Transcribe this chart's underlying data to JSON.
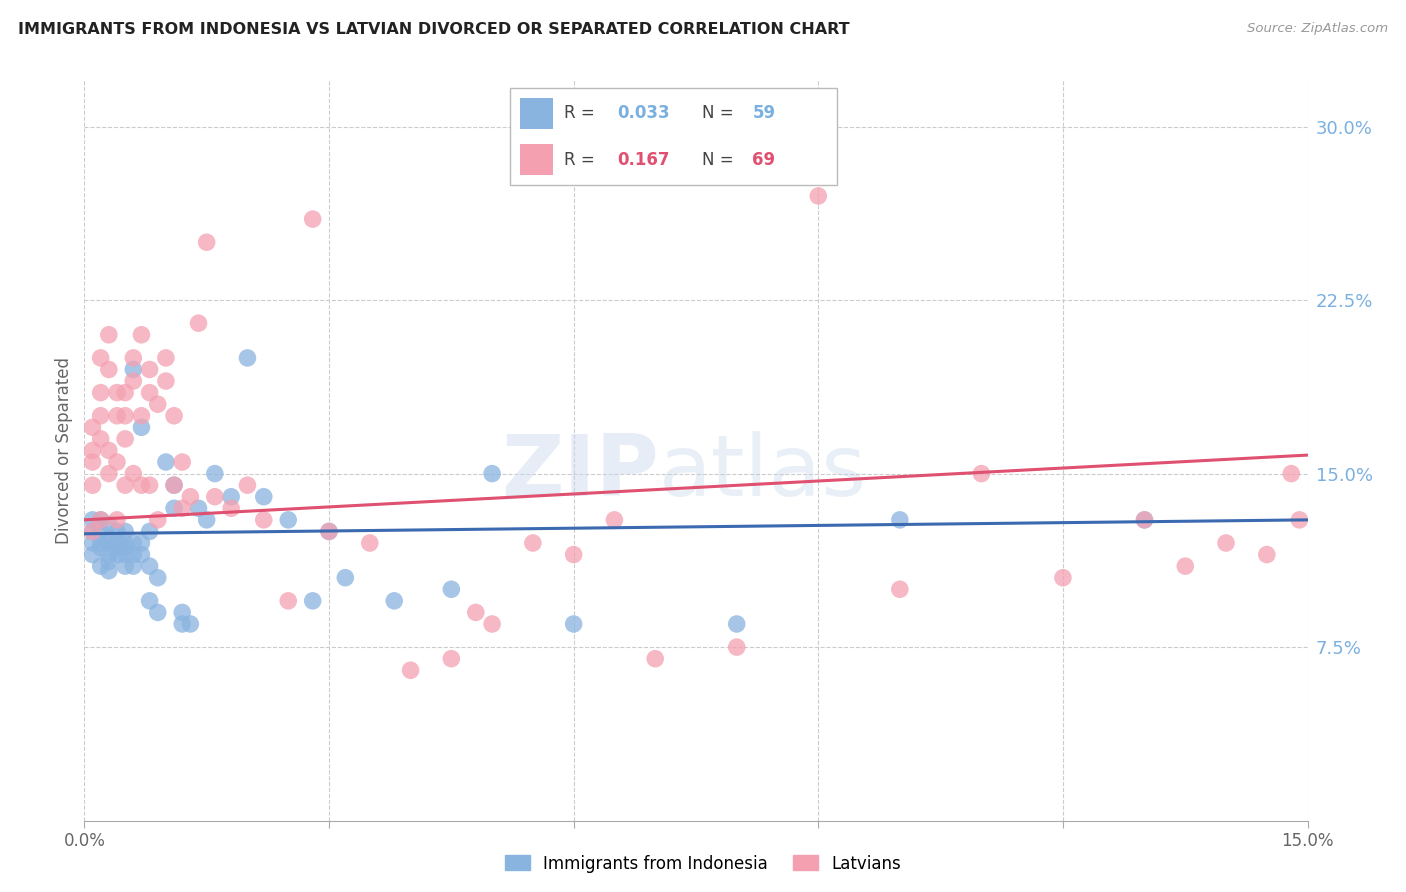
{
  "title": "IMMIGRANTS FROM INDONESIA VS LATVIAN DIVORCED OR SEPARATED CORRELATION CHART",
  "source": "Source: ZipAtlas.com",
  "ylabel": "Divorced or Separated",
  "xlim": [
    0.0,
    0.15
  ],
  "ylim": [
    0.0,
    0.32
  ],
  "xtick_positions": [
    0.0,
    0.03,
    0.06,
    0.09,
    0.12,
    0.15
  ],
  "xticklabels": [
    "0.0%",
    "",
    "",
    "",
    "",
    "15.0%"
  ],
  "yticks_right": [
    0.075,
    0.15,
    0.225,
    0.3
  ],
  "ytick_labels_right": [
    "7.5%",
    "15.0%",
    "22.5%",
    "30.0%"
  ],
  "legend_label1": "Immigrants from Indonesia",
  "legend_label2": "Latvians",
  "color_blue": "#8ab4e0",
  "color_pink": "#f4a0b0",
  "color_blue_line": "#3c6ab0",
  "color_pink_line": "#e05070",
  "color_right_axis": "#7ab0e0",
  "blue_scatter_x": [
    0.001,
    0.001,
    0.001,
    0.001,
    0.002,
    0.002,
    0.002,
    0.002,
    0.002,
    0.003,
    0.003,
    0.003,
    0.003,
    0.003,
    0.003,
    0.004,
    0.004,
    0.004,
    0.004,
    0.005,
    0.005,
    0.005,
    0.005,
    0.005,
    0.006,
    0.006,
    0.006,
    0.006,
    0.007,
    0.007,
    0.007,
    0.008,
    0.008,
    0.008,
    0.009,
    0.009,
    0.01,
    0.011,
    0.011,
    0.012,
    0.012,
    0.013,
    0.014,
    0.015,
    0.016,
    0.018,
    0.02,
    0.022,
    0.025,
    0.028,
    0.03,
    0.032,
    0.038,
    0.045,
    0.05,
    0.06,
    0.08,
    0.1,
    0.13
  ],
  "blue_scatter_y": [
    0.125,
    0.13,
    0.115,
    0.12,
    0.12,
    0.13,
    0.125,
    0.118,
    0.11,
    0.115,
    0.12,
    0.128,
    0.112,
    0.122,
    0.108,
    0.115,
    0.12,
    0.125,
    0.118,
    0.11,
    0.115,
    0.12,
    0.125,
    0.118,
    0.115,
    0.12,
    0.195,
    0.11,
    0.115,
    0.12,
    0.17,
    0.095,
    0.11,
    0.125,
    0.09,
    0.105,
    0.155,
    0.145,
    0.135,
    0.085,
    0.09,
    0.085,
    0.135,
    0.13,
    0.15,
    0.14,
    0.2,
    0.14,
    0.13,
    0.095,
    0.125,
    0.105,
    0.095,
    0.1,
    0.15,
    0.085,
    0.085,
    0.13,
    0.13
  ],
  "pink_scatter_x": [
    0.001,
    0.001,
    0.001,
    0.001,
    0.001,
    0.002,
    0.002,
    0.002,
    0.002,
    0.002,
    0.003,
    0.003,
    0.003,
    0.003,
    0.004,
    0.004,
    0.004,
    0.004,
    0.005,
    0.005,
    0.005,
    0.005,
    0.006,
    0.006,
    0.006,
    0.007,
    0.007,
    0.007,
    0.008,
    0.008,
    0.008,
    0.009,
    0.009,
    0.01,
    0.01,
    0.011,
    0.011,
    0.012,
    0.012,
    0.013,
    0.014,
    0.015,
    0.016,
    0.018,
    0.02,
    0.022,
    0.025,
    0.028,
    0.03,
    0.035,
    0.04,
    0.045,
    0.048,
    0.05,
    0.055,
    0.06,
    0.065,
    0.07,
    0.08,
    0.09,
    0.1,
    0.11,
    0.12,
    0.13,
    0.135,
    0.14,
    0.145,
    0.148,
    0.149
  ],
  "pink_scatter_y": [
    0.145,
    0.155,
    0.16,
    0.17,
    0.125,
    0.165,
    0.175,
    0.185,
    0.13,
    0.2,
    0.16,
    0.15,
    0.195,
    0.21,
    0.185,
    0.175,
    0.155,
    0.13,
    0.185,
    0.175,
    0.145,
    0.165,
    0.2,
    0.15,
    0.19,
    0.145,
    0.21,
    0.175,
    0.195,
    0.185,
    0.145,
    0.18,
    0.13,
    0.19,
    0.2,
    0.175,
    0.145,
    0.135,
    0.155,
    0.14,
    0.215,
    0.25,
    0.14,
    0.135,
    0.145,
    0.13,
    0.095,
    0.26,
    0.125,
    0.12,
    0.065,
    0.07,
    0.09,
    0.085,
    0.12,
    0.115,
    0.13,
    0.07,
    0.075,
    0.27,
    0.1,
    0.15,
    0.105,
    0.13,
    0.11,
    0.12,
    0.115,
    0.15,
    0.13
  ],
  "blue_line_x": [
    0.0,
    0.15
  ],
  "blue_line_y": [
    0.124,
    0.13
  ],
  "pink_line_x": [
    0.0,
    0.15
  ],
  "pink_line_y": [
    0.13,
    0.158
  ]
}
